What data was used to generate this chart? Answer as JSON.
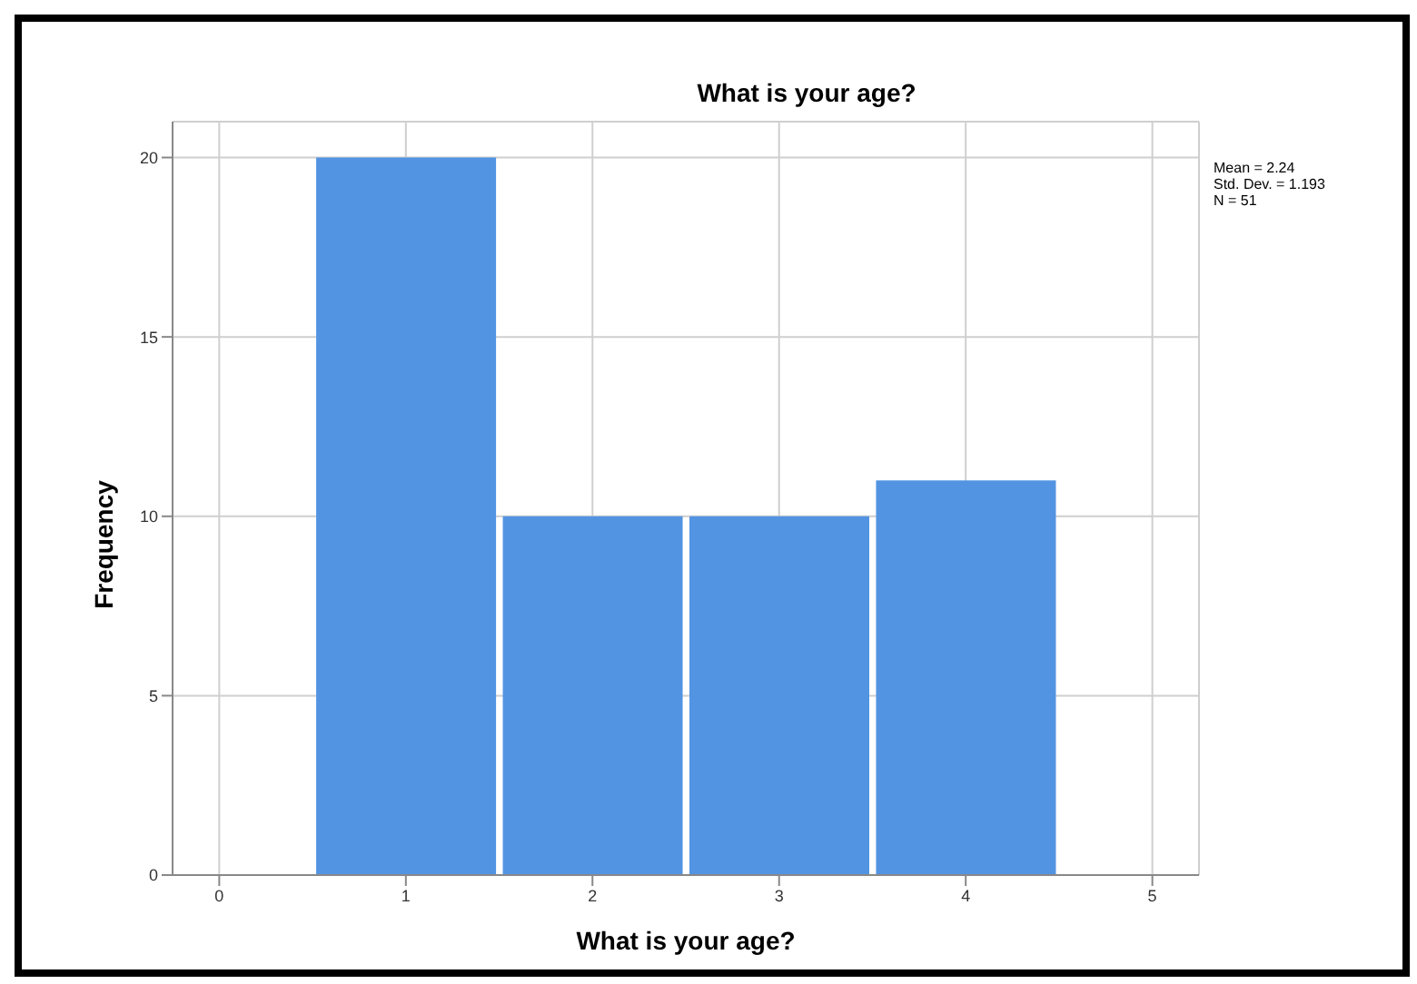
{
  "chart_data": {
    "type": "histogram",
    "title": "What is your age?",
    "xlabel": "What is your age?",
    "ylabel": "Frequency",
    "bins": [
      0.5,
      1.5,
      2.5,
      3.5,
      4.5
    ],
    "values": [
      20,
      10,
      10,
      11
    ],
    "color": "#5294e2",
    "xlim": [
      -0.25,
      5.25
    ],
    "xticks": [
      0,
      1,
      2,
      3,
      4,
      5
    ],
    "ylim": [
      0,
      21
    ],
    "yticks": [
      0,
      5,
      10,
      15,
      20
    ],
    "grid": true,
    "annotations": [
      "Mean = 2.24",
      "Std. Dev. = 1.193",
      "N = 51"
    ]
  }
}
